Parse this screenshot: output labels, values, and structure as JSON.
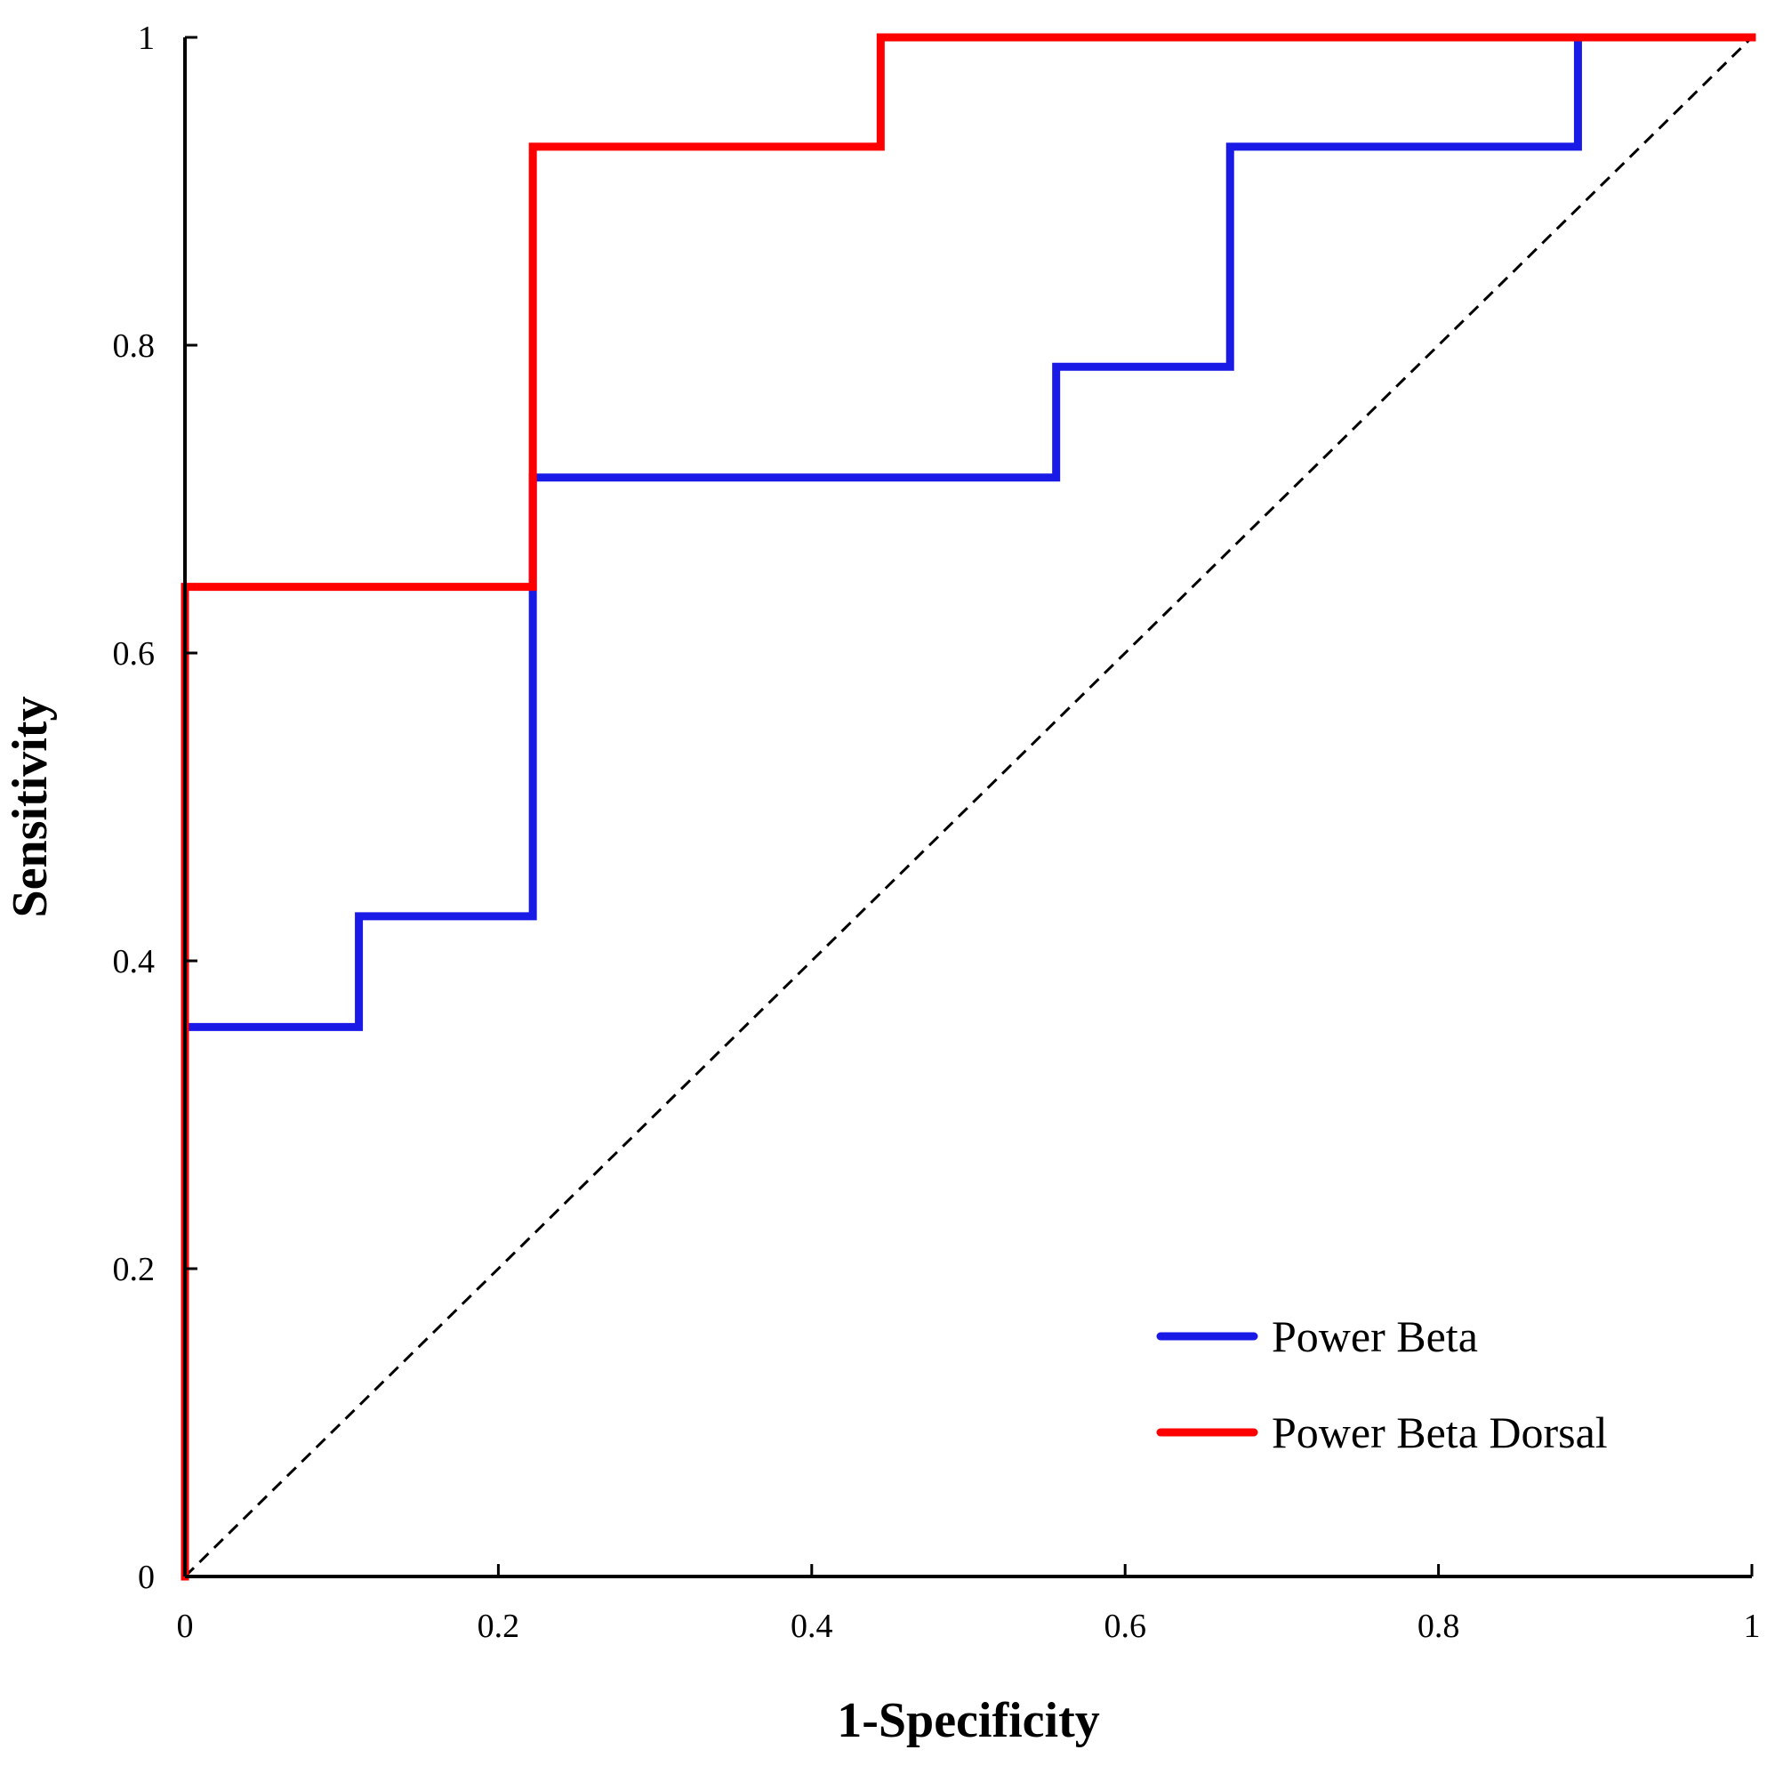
{
  "chart_data": {
    "type": "line",
    "title": "",
    "xlabel": "1-Specificity",
    "ylabel": "Sensitivity",
    "xlim": [
      0,
      1
    ],
    "ylim": [
      0,
      1
    ],
    "x_ticks": [
      0,
      0.2,
      0.4,
      0.6,
      0.8,
      1
    ],
    "x_tick_labels": [
      "0",
      "0.2",
      "0.4",
      "0.6",
      "0.8",
      "1"
    ],
    "y_ticks": [
      0,
      0.2,
      0.4,
      0.6,
      0.8,
      1
    ],
    "y_tick_labels": [
      "0",
      "0.2",
      "0.4",
      "0.6",
      "0.8",
      "1"
    ],
    "grid": false,
    "legend_position": "bottom-right",
    "series": [
      {
        "name": "Power Beta",
        "color": "#1a1ae6",
        "step": true,
        "points": [
          [
            0,
            0
          ],
          [
            0,
            0.357
          ],
          [
            0.111,
            0.357
          ],
          [
            0.111,
            0.429
          ],
          [
            0.222,
            0.429
          ],
          [
            0.222,
            0.714
          ],
          [
            0.556,
            0.714
          ],
          [
            0.556,
            0.786
          ],
          [
            0.667,
            0.786
          ],
          [
            0.667,
            0.929
          ],
          [
            0.889,
            0.929
          ],
          [
            0.889,
            1
          ],
          [
            1,
            1
          ]
        ]
      },
      {
        "name": "Power Beta Dorsal",
        "color": "#ff0000",
        "step": true,
        "points": [
          [
            0,
            0
          ],
          [
            0,
            0.643
          ],
          [
            0.222,
            0.643
          ],
          [
            0.222,
            0.929
          ],
          [
            0.444,
            0.929
          ],
          [
            0.444,
            1
          ],
          [
            1,
            1
          ]
        ]
      }
    ],
    "reference_line": {
      "style": "dashed",
      "color": "#000000",
      "points": [
        [
          0,
          0
        ],
        [
          1,
          1
        ]
      ]
    }
  }
}
